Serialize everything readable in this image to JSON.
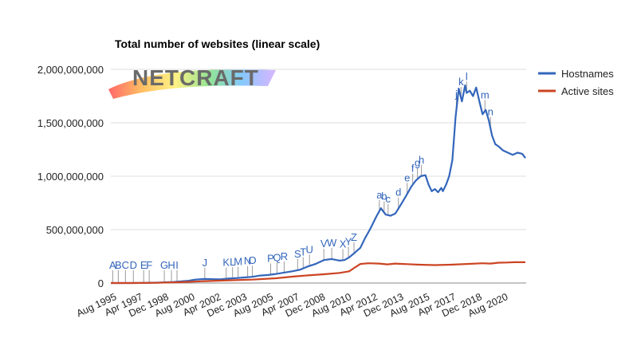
{
  "chart_data": {
    "type": "line",
    "title": "Total number of websites (linear scale)",
    "logo_text": "NETCRAFT",
    "ylim": [
      0,
      2000000000
    ],
    "y_ticks": [
      {
        "value": 0,
        "label": "0"
      },
      {
        "value": 500000000,
        "label": "500,000,000"
      },
      {
        "value": 1000000000,
        "label": "1,000,000,000"
      },
      {
        "value": 1500000000,
        "label": "1,500,000,000"
      },
      {
        "value": 2000000000,
        "label": "2,000,000,000"
      }
    ],
    "x_ticks": [
      "Aug 1995",
      "Apr 1997",
      "Dec 1998",
      "Aug 2000",
      "Apr 2002",
      "Dec 2003",
      "Aug 2005",
      "Apr 2007",
      "Dec 2008",
      "Aug 2010",
      "Apr 2012",
      "Dec 2013",
      "Aug 2015",
      "Apr 2017",
      "Dec 2018",
      "Aug 2020"
    ],
    "grid": true,
    "legend_position": "right",
    "series": [
      {
        "name": "Hostnames",
        "color": "#3366bb",
        "x": [
          1995.58,
          1996.5,
          1997.5,
          1998.5,
          1999.5,
          2000.5,
          2000.9,
          2001.5,
          2002.0,
          2002.5,
          2003.0,
          2003.5,
          2004.0,
          2004.5,
          2005.0,
          2005.5,
          2006.0,
          2006.5,
          2007.0,
          2007.5,
          2008.0,
          2008.5,
          2009.0,
          2009.5,
          2010.0,
          2010.3,
          2010.6,
          2011.0,
          2011.3,
          2011.6,
          2011.9,
          2012.1,
          2012.3,
          2012.6,
          2012.9,
          2013.2,
          2013.5,
          2013.8,
          2014.0,
          2014.2,
          2014.5,
          2014.8,
          2015.1,
          2015.4,
          2015.6,
          2015.8,
          2016.0,
          2016.2,
          2016.4,
          2016.5,
          2016.7,
          2016.9,
          2017.1,
          2017.3,
          2017.5,
          2017.7,
          2017.9,
          2018.0,
          2018.2,
          2018.4,
          2018.6,
          2018.8,
          2019.0,
          2019.2,
          2019.4,
          2019.6,
          2019.8,
          2020.0,
          2020.3,
          2020.6,
          2020.9,
          2021.2,
          2021.5,
          2021.7
        ],
        "values": [
          0,
          200000,
          1000000,
          3500000,
          10000000,
          22000000,
          32000000,
          38000000,
          36000000,
          35000000,
          42000000,
          46000000,
          52000000,
          58000000,
          70000000,
          75000000,
          85000000,
          98000000,
          110000000,
          125000000,
          155000000,
          180000000,
          215000000,
          225000000,
          210000000,
          215000000,
          240000000,
          290000000,
          330000000,
          420000000,
          500000000,
          560000000,
          620000000,
          700000000,
          640000000,
          630000000,
          650000000,
          720000000,
          770000000,
          820000000,
          900000000,
          960000000,
          1000000000,
          1010000000,
          920000000,
          860000000,
          880000000,
          850000000,
          890000000,
          860000000,
          920000000,
          1000000000,
          1150000000,
          1550000000,
          1820000000,
          1700000000,
          1850000000,
          1780000000,
          1800000000,
          1750000000,
          1830000000,
          1700000000,
          1580000000,
          1620000000,
          1520000000,
          1380000000,
          1300000000,
          1280000000,
          1240000000,
          1220000000,
          1200000000,
          1220000000,
          1210000000,
          1170000000
        ]
      },
      {
        "name": "Active sites",
        "color": "#cc4422",
        "x": [
          1995.58,
          1997.0,
          1998.5,
          2000.0,
          2001.5,
          2003.0,
          2004.5,
          2006.0,
          2007.0,
          2008.0,
          2009.0,
          2010.0,
          2010.6,
          2011.0,
          2011.3,
          2011.8,
          2012.5,
          2013.0,
          2013.5,
          2014.0,
          2015.0,
          2016.0,
          2017.0,
          2018.0,
          2019.0,
          2019.5,
          2020.0,
          2020.5,
          2021.0,
          2021.7
        ],
        "values": [
          0,
          300000,
          2000000,
          8000000,
          18000000,
          25000000,
          32000000,
          45000000,
          60000000,
          72000000,
          82000000,
          95000000,
          110000000,
          150000000,
          178000000,
          185000000,
          182000000,
          175000000,
          182000000,
          178000000,
          172000000,
          168000000,
          172000000,
          178000000,
          185000000,
          182000000,
          190000000,
          192000000,
          195000000,
          195000000
        ]
      }
    ],
    "annotations": [
      {
        "label": "A",
        "x": 1995.7
      },
      {
        "label": "B",
        "x": 1996.05
      },
      {
        "label": "C",
        "x": 1996.5
      },
      {
        "label": "D",
        "x": 1997.0
      },
      {
        "label": "E",
        "x": 1997.65
      },
      {
        "label": "F",
        "x": 1998.0
      },
      {
        "label": "G",
        "x": 1998.95
      },
      {
        "label": "H",
        "x": 1999.4
      },
      {
        "label": "I",
        "x": 1999.75
      },
      {
        "label": "J",
        "x": 2001.5
      },
      {
        "label": "K",
        "x": 2002.85
      },
      {
        "label": "L",
        "x": 2003.25
      },
      {
        "label": "M",
        "x": 2003.6
      },
      {
        "label": "N",
        "x": 2004.2
      },
      {
        "label": "O",
        "x": 2004.5
      },
      {
        "label": "P",
        "x": 2005.65
      },
      {
        "label": "Q",
        "x": 2006.05
      },
      {
        "label": "R",
        "x": 2006.5
      },
      {
        "label": "S",
        "x": 2007.35
      },
      {
        "label": "T",
        "x": 2007.7
      },
      {
        "label": "U",
        "x": 2008.1
      },
      {
        "label": "V",
        "x": 2009.0
      },
      {
        "label": "W",
        "x": 2009.5
      },
      {
        "label": "X",
        "x": 2010.2
      },
      {
        "label": "Y",
        "x": 2010.55
      },
      {
        "label": "Z",
        "x": 2010.9
      },
      {
        "label": "a",
        "x": 2012.5
      },
      {
        "label": "b",
        "x": 2012.8
      },
      {
        "label": "c",
        "x": 2013.05
      },
      {
        "label": "d",
        "x": 2013.7
      },
      {
        "label": "e",
        "x": 2014.25
      },
      {
        "label": "f",
        "x": 2014.6
      },
      {
        "label": "g",
        "x": 2014.9
      },
      {
        "label": "h",
        "x": 2015.15
      },
      {
        "label": "j",
        "x": 2017.35
      },
      {
        "label": "k",
        "x": 2017.65
      },
      {
        "label": "l",
        "x": 2018.0
      },
      {
        "label": "m",
        "x": 2019.15
      },
      {
        "label": "n",
        "x": 2019.5
      }
    ]
  }
}
